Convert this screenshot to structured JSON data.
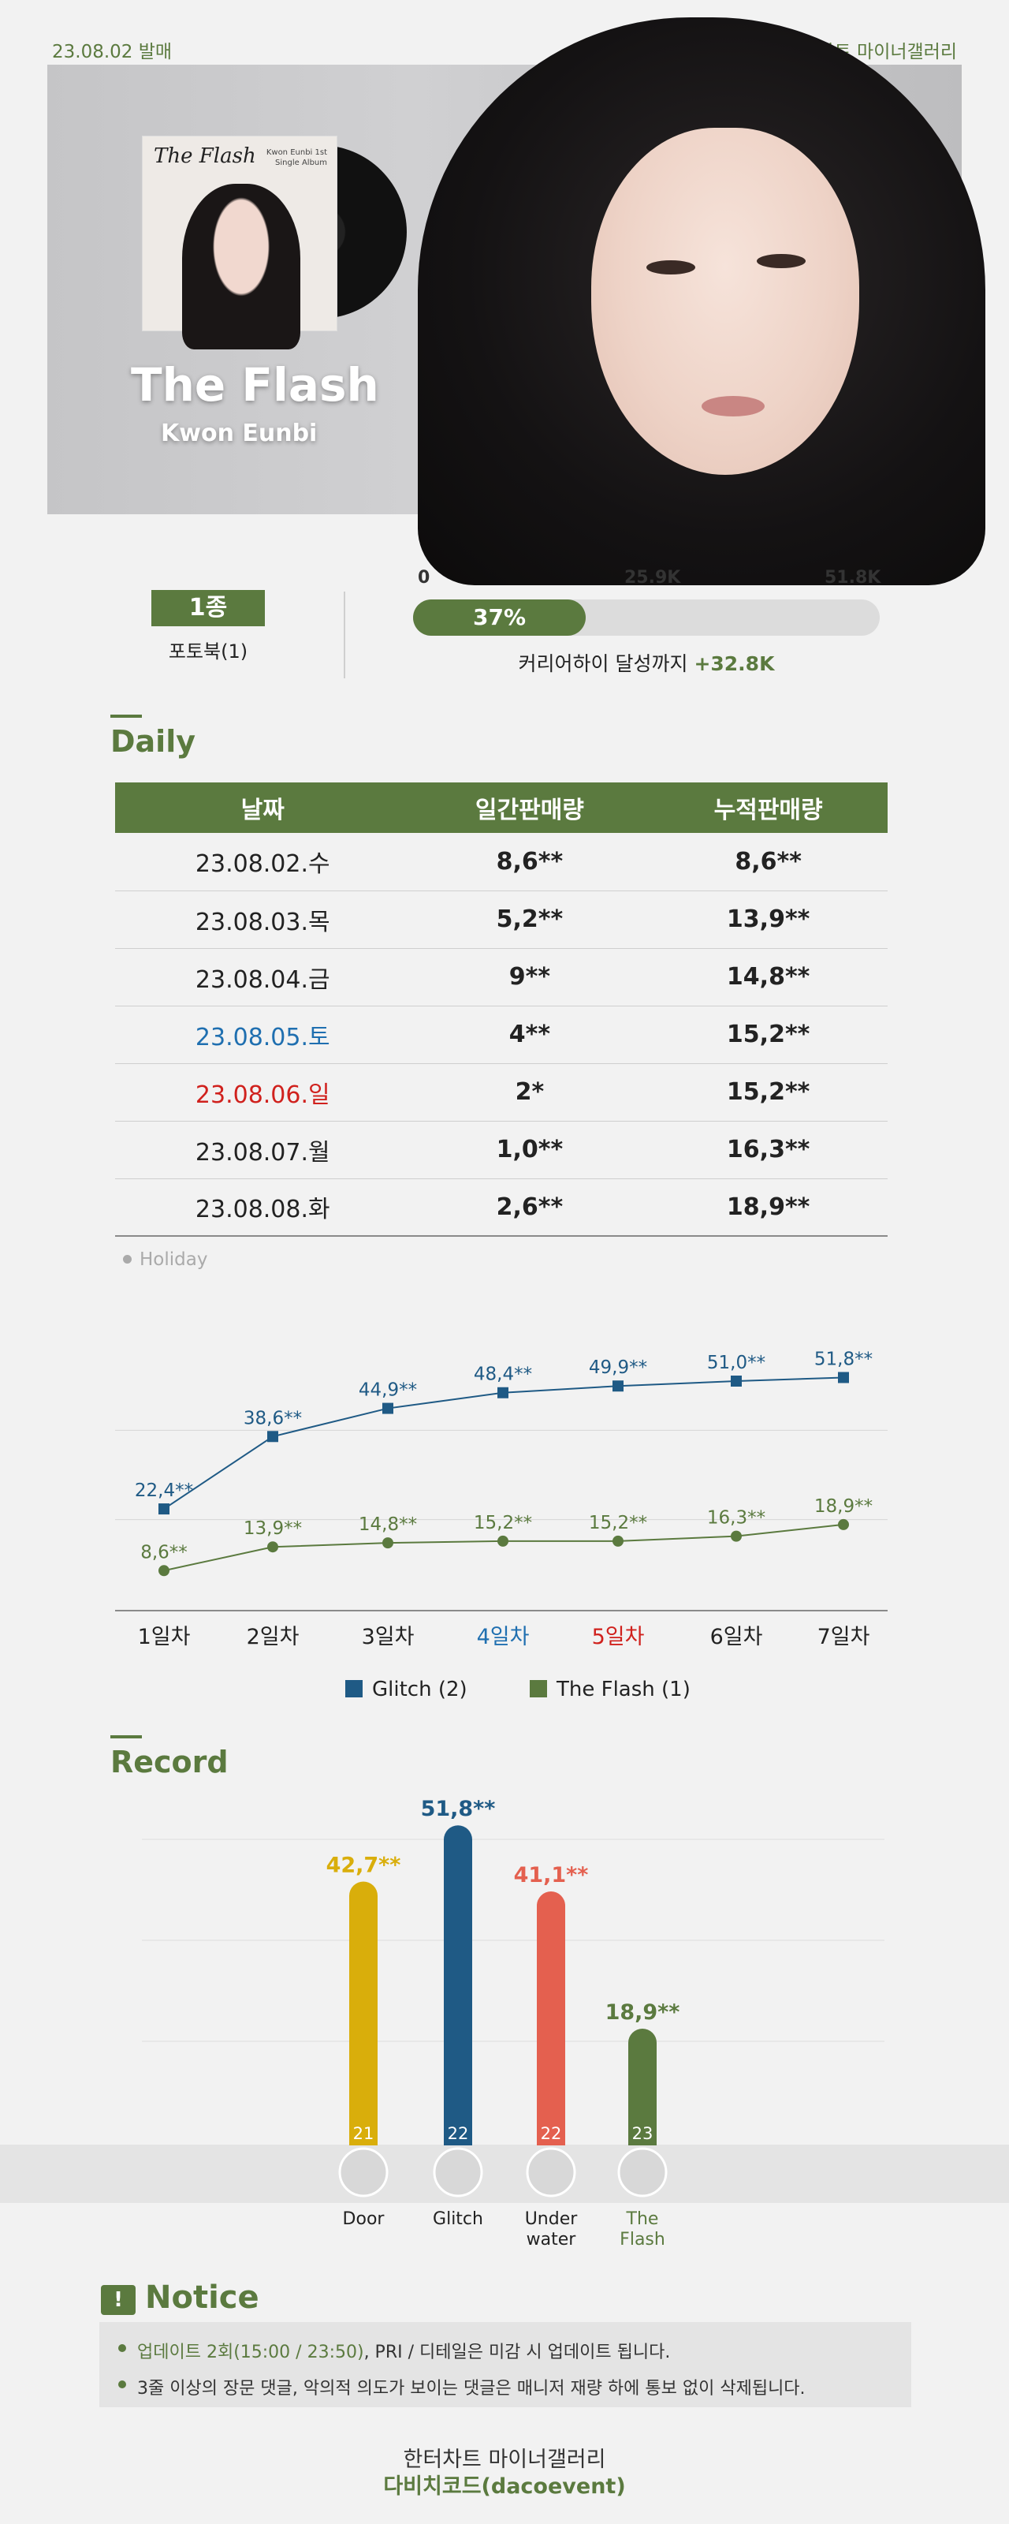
{
  "header": {
    "release": "23.08.02 발매",
    "brand": "한터차트 마이너갤러리"
  },
  "hero": {
    "title": "The Flash",
    "artist": "Kwon Eunbi",
    "cover_title": "The Flash",
    "cover_sub": "Kwon Eunbi 1st Single Album"
  },
  "summary": {
    "versions_badge": "1종",
    "versions_desc": "포토북(1)",
    "ticks": [
      "0",
      "25.9K",
      "51.8K"
    ],
    "progress_percent": 37,
    "progress_label": "37%",
    "goal_text": "커리어하이 달성까지 ",
    "goal_value": "+32.8K"
  },
  "daily": {
    "section_title": "Daily",
    "headers": [
      "날짜",
      "일간판매량",
      "누적판매량"
    ],
    "rows": [
      {
        "date": "23.08.02.수",
        "day": "8,6**",
        "total": "8,6**",
        "type": "normal"
      },
      {
        "date": "23.08.03.목",
        "day": "5,2**",
        "total": "13,9**",
        "type": "normal"
      },
      {
        "date": "23.08.04.금",
        "day": "9**",
        "total": "14,8**",
        "type": "normal"
      },
      {
        "date": "23.08.05.토",
        "day": "4**",
        "total": "15,2**",
        "type": "sat"
      },
      {
        "date": "23.08.06.일",
        "day": "2*",
        "total": "15,2**",
        "type": "sun"
      },
      {
        "date": "23.08.07.월",
        "day": "1,0**",
        "total": "16,3**",
        "type": "normal"
      },
      {
        "date": "23.08.08.화",
        "day": "2,6**",
        "total": "18,9**",
        "type": "normal"
      }
    ],
    "holiday_label": "Holiday"
  },
  "chart_data": [
    {
      "type": "line",
      "categories": [
        "1일차",
        "2일차",
        "3일차",
        "4일차",
        "5일차",
        "6일차",
        "7일차"
      ],
      "category_colors": [
        "#222222",
        "#222222",
        "#222222",
        "#1f6fb0",
        "#d0211d",
        "#222222",
        "#222222"
      ],
      "ylim": [
        0,
        60
      ],
      "grid": true,
      "legend_position": "bottom",
      "series": [
        {
          "name": "Glitch (2)",
          "color": "#1f5a85",
          "marker": "square",
          "values": [
            22.4,
            38.6,
            44.9,
            48.4,
            49.9,
            51.0,
            51.8
          ],
          "labels": [
            "22,4**",
            "38,6**",
            "44,9**",
            "48,4**",
            "49,9**",
            "51,0**",
            "51,8**"
          ]
        },
        {
          "name": "The Flash (1)",
          "color": "#5b7a3f",
          "marker": "circle",
          "values": [
            8.6,
            13.9,
            14.8,
            15.2,
            15.2,
            16.3,
            18.9
          ],
          "labels": [
            "8,6**",
            "13,9**",
            "14,8**",
            "15,2**",
            "15,2**",
            "16,3**",
            "18,9**"
          ]
        }
      ]
    },
    {
      "type": "bar",
      "title": "Record",
      "categories": [
        "Door",
        "Glitch",
        "Under water",
        "The Flash"
      ],
      "values": [
        42.7,
        51.8,
        41.1,
        18.9
      ],
      "value_labels": [
        "42,7**",
        "51,8**",
        "41,1**",
        "18,9**"
      ],
      "years": [
        "21",
        "22",
        "22",
        "23"
      ],
      "colors": [
        "#d9ae0b",
        "#1f5a85",
        "#e4604f",
        "#5b7a3f"
      ],
      "ylim": [
        0,
        60
      ],
      "grid": true
    }
  ],
  "record": {
    "section_title": "Record"
  },
  "notice": {
    "title": "Notice",
    "icon": "notice-icon",
    "items": [
      {
        "highlight": "업데이트 2회(15:00 / 23:50)",
        "text": ", PRI / 디테일은 미감 시 업데이트 됩니다."
      },
      {
        "highlight": "",
        "text": "3줄 이상의 장문 댓글, 악의적 의도가 보이는 댓글은 매니저 재량 하에 통보 없이 삭제됩니다."
      }
    ]
  },
  "footer": {
    "line1": "한터차트 마이너갤러리",
    "line2": "다비치코드(dacoevent)"
  }
}
